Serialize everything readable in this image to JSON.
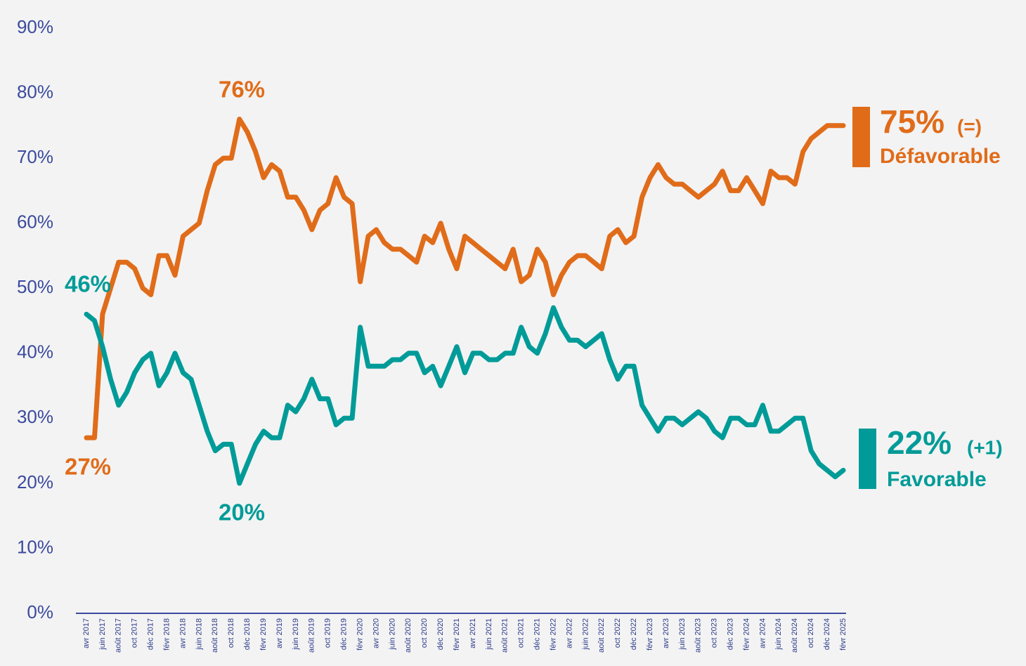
{
  "chart_data": {
    "type": "line",
    "categories": [
      "avr 2017",
      null,
      "juin 2017",
      null,
      "août 2017",
      null,
      "oct 2017",
      null,
      "déc 2017",
      null,
      "févr 2018",
      null,
      "avr 2018",
      null,
      "juin 2018",
      null,
      "août 2018",
      null,
      "oct 2018",
      null,
      "déc 2018",
      null,
      "févr 2019",
      null,
      "avr 2019",
      null,
      "juin 2019",
      null,
      "août 2019",
      null,
      "oct 2019",
      null,
      "déc 2019",
      null,
      "févr 2020",
      null,
      "avr 2020",
      null,
      "juin 2020",
      null,
      "août 2020",
      null,
      "oct 2020",
      null,
      "déc 2020",
      null,
      "févr 2021",
      null,
      "avr 2021",
      null,
      "juin 2021",
      null,
      "août 2021",
      null,
      "oct 2021",
      null,
      "déc 2021",
      null,
      "févr 2022",
      null,
      "avr 2022",
      null,
      "juin 2022",
      null,
      "août 2022",
      null,
      "oct 2022",
      null,
      "déc 2022",
      null,
      "févr 2023",
      null,
      "avr 2023",
      null,
      "juin 2023",
      null,
      "août 2023",
      null,
      "oct 2023",
      null,
      "déc 2023",
      null,
      "févr 2024",
      null,
      "avr 2024",
      null,
      "juin 2024",
      null,
      "août 2024",
      null,
      "oct 2024",
      null,
      "déc 2024",
      null,
      "févr 2025"
    ],
    "series": [
      {
        "name": "Défavorable",
        "color": "#e06c1a",
        "end_label": "75%",
        "change": "(=)",
        "values": [
          27,
          27,
          46,
          50,
          54,
          54,
          53,
          50,
          49,
          55,
          55,
          52,
          58,
          59,
          60,
          65,
          69,
          70,
          70,
          76,
          74,
          71,
          67,
          69,
          68,
          64,
          64,
          62,
          59,
          62,
          63,
          67,
          64,
          63,
          51,
          58,
          59,
          57,
          56,
          56,
          55,
          54,
          58,
          57,
          60,
          56,
          53,
          58,
          57,
          56,
          55,
          54,
          53,
          56,
          51,
          52,
          56,
          54,
          49,
          52,
          54,
          55,
          55,
          54,
          53,
          58,
          59,
          57,
          58,
          64,
          67,
          69,
          67,
          66,
          66,
          65,
          64,
          65,
          66,
          68,
          65,
          65,
          67,
          65,
          63,
          68,
          67,
          67,
          66,
          71,
          73,
          74,
          75,
          75,
          75
        ]
      },
      {
        "name": "Favorable",
        "color": "#009b98",
        "end_label": "22%",
        "change": "(+1)",
        "values": [
          46,
          45,
          41,
          36,
          32,
          34,
          37,
          39,
          40,
          35,
          37,
          40,
          37,
          36,
          32,
          28,
          25,
          26,
          26,
          20,
          23,
          26,
          28,
          27,
          27,
          32,
          31,
          33,
          36,
          33,
          33,
          29,
          30,
          30,
          44,
          38,
          38,
          38,
          39,
          39,
          40,
          40,
          37,
          38,
          35,
          38,
          41,
          37,
          40,
          40,
          39,
          39,
          40,
          40,
          44,
          41,
          40,
          43,
          47,
          44,
          42,
          42,
          41,
          42,
          43,
          39,
          36,
          38,
          38,
          32,
          30,
          28,
          30,
          30,
          29,
          30,
          31,
          30,
          28,
          27,
          30,
          30,
          29,
          29,
          32,
          28,
          28,
          29,
          30,
          30,
          25,
          23,
          22,
          21,
          22
        ]
      }
    ],
    "annotations": [
      "76%",
      "27%",
      "46%",
      "20%"
    ],
    "ylim": [
      0,
      90
    ],
    "yticks": [
      {
        "value": 0,
        "label": "0%"
      },
      {
        "value": 10,
        "label": "10%"
      },
      {
        "value": 20,
        "label": "20%"
      },
      {
        "value": 30,
        "label": "30%"
      },
      {
        "value": 40,
        "label": "40%"
      },
      {
        "value": 50,
        "label": "50%"
      },
      {
        "value": 60,
        "label": "60%"
      },
      {
        "value": 70,
        "label": "70%"
      },
      {
        "value": 80,
        "label": "80%"
      },
      {
        "value": 90,
        "label": "90%"
      }
    ],
    "grid": false
  }
}
